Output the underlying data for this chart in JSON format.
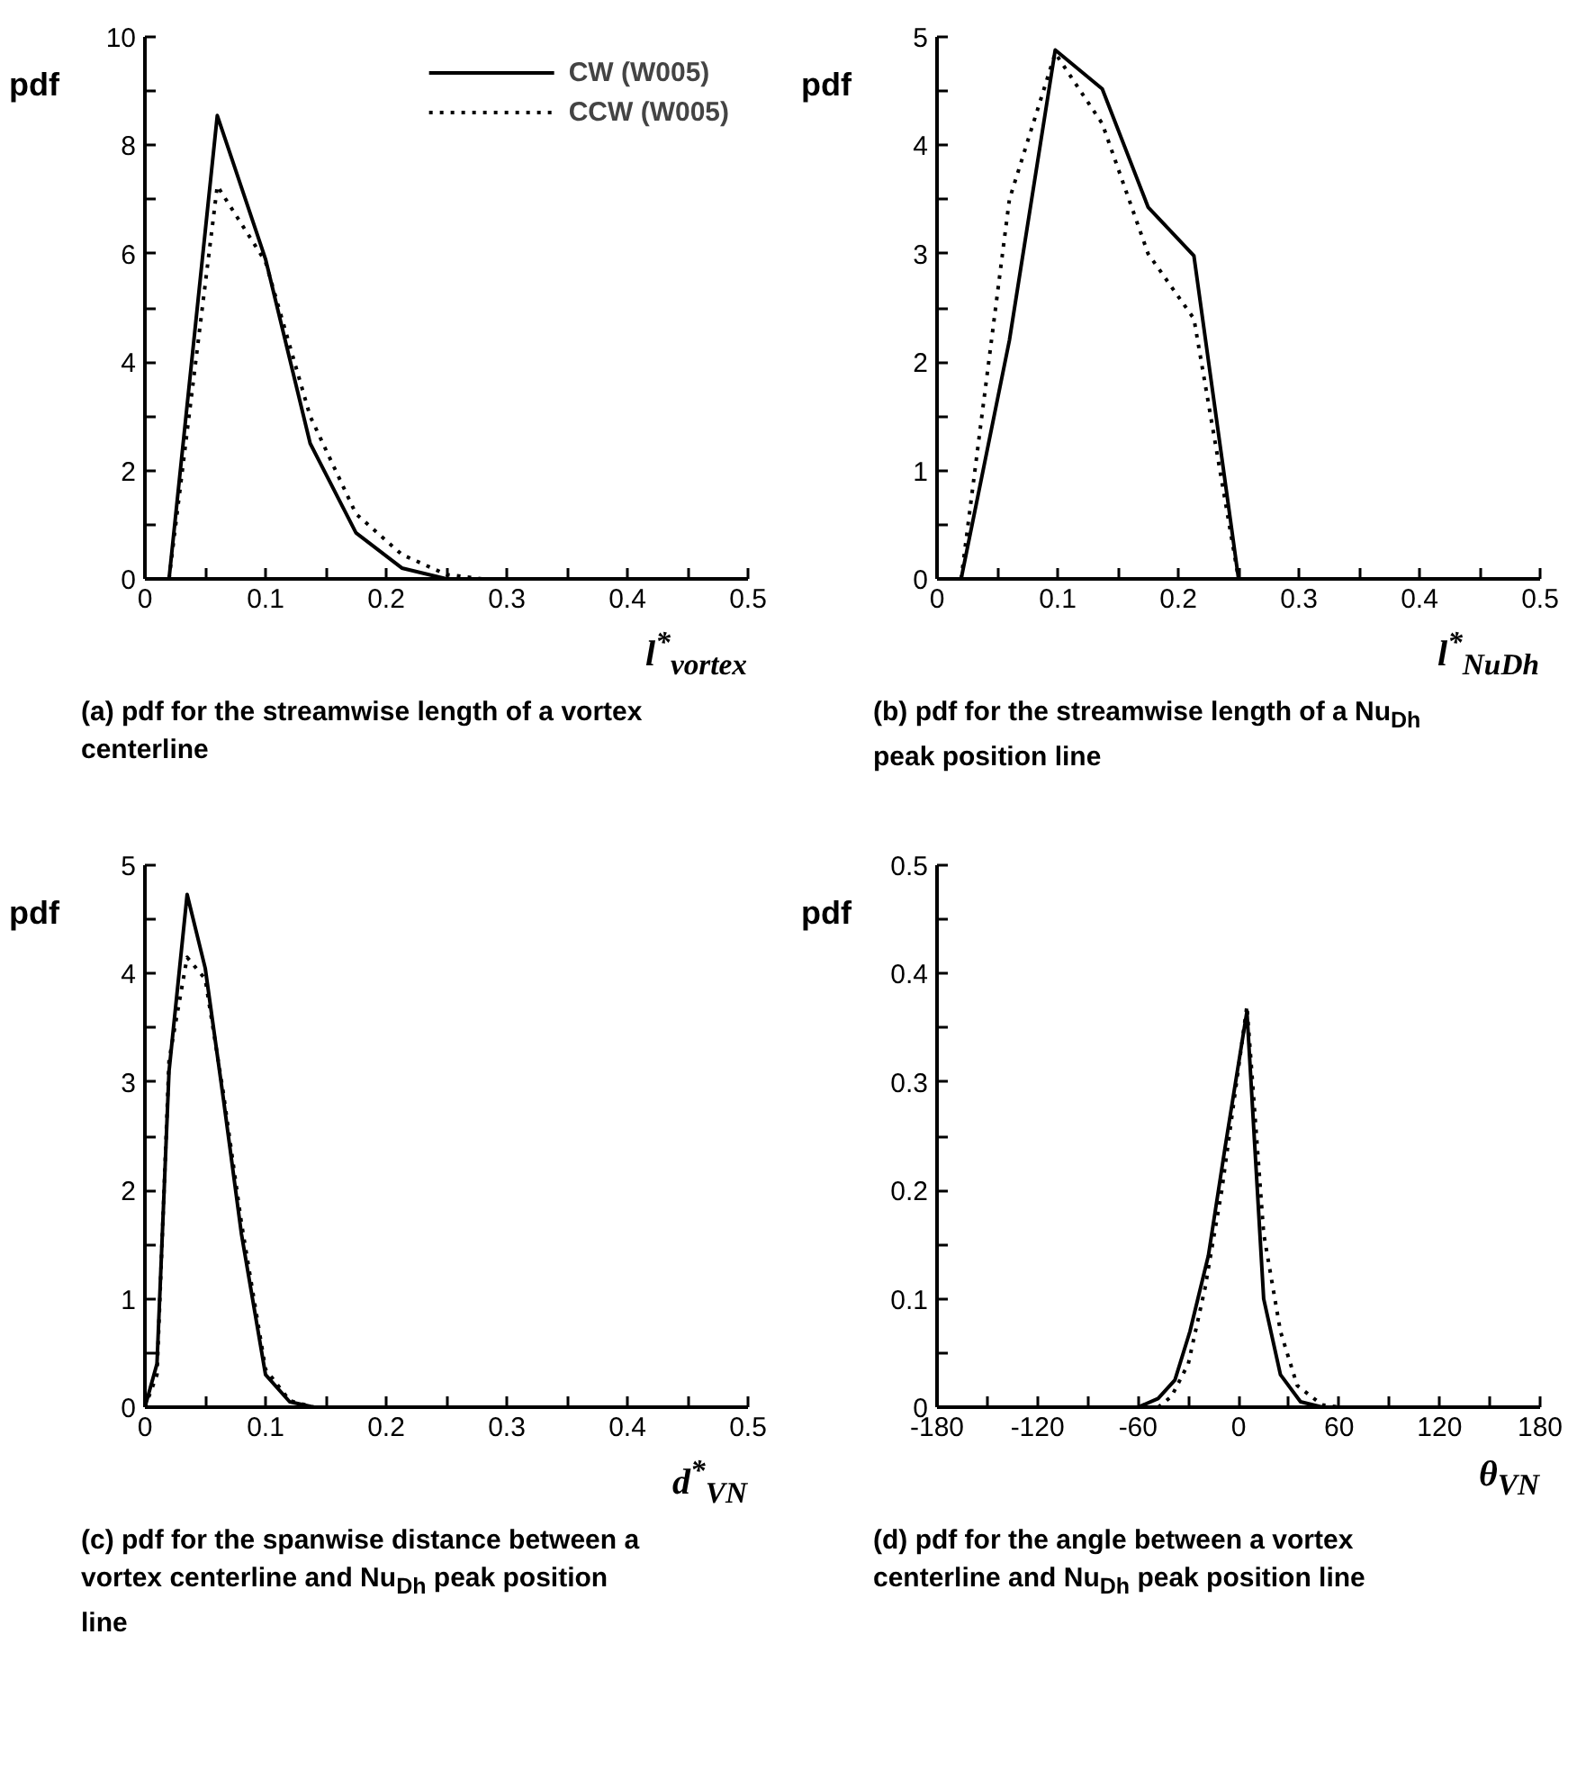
{
  "chart_data": [
    {
      "type": "line",
      "xlabel": "l$^{*}$$_{vortex}$",
      "ylabel": "pdf",
      "title": "(a) pdf for the streamwise  length of a vortex centerline",
      "legend": "top right",
      "grid": false,
      "xlim": [
        0,
        0.5
      ],
      "ylim": [
        0,
        10
      ],
      "xticks": [
        0,
        {
          "value": 0.05,
          "label": null
        },
        0.1,
        {
          "value": 0.15,
          "label": null
        },
        0.2,
        {
          "value": 0.25,
          "label": null
        },
        0.3,
        {
          "value": 0.35,
          "label": null
        },
        0.4,
        {
          "value": 0.45,
          "label": null
        },
        0.5
      ],
      "yticks": [
        0,
        {
          "value": 1,
          "label": null
        },
        2,
        {
          "value": 3,
          "label": null
        },
        4,
        {
          "value": 5,
          "label": null
        },
        6,
        {
          "value": 7,
          "label": null
        },
        8,
        {
          "value": 9,
          "label": null
        },
        10
      ],
      "series": [
        {
          "name": "CW (W005)",
          "color": "#000000",
          "line_style": "solid",
          "x": [
            0.02,
            0.06,
            0.1,
            0.137,
            0.175,
            0.213,
            0.25,
            0.5
          ],
          "values": [
            0,
            8.55,
            5.9,
            2.5,
            0.85,
            0.2,
            0,
            0
          ]
        },
        {
          "name": "CCW (W005)",
          "color": "#000000",
          "line_style": "dotted",
          "x": [
            0.02,
            0.06,
            0.1,
            0.137,
            0.175,
            0.213,
            0.25,
            0.28,
            0.5
          ],
          "values": [
            0,
            7.25,
            5.85,
            3.0,
            1.2,
            0.45,
            0.08,
            0,
            0
          ]
        }
      ]
    },
    {
      "type": "line",
      "xlabel": "l$^{*}$$_{NuDh}$",
      "ylabel": "pdf",
      "title": "(b) pdf for the streamwise length of a Nu$_{Dh}$ peak position line",
      "grid": false,
      "xlim": [
        0,
        0.5
      ],
      "ylim": [
        0,
        5
      ],
      "xticks": [
        0,
        {
          "value": 0.05,
          "label": null
        },
        0.1,
        {
          "value": 0.15,
          "label": null
        },
        0.2,
        {
          "value": 0.25,
          "label": null
        },
        0.3,
        {
          "value": 0.35,
          "label": null
        },
        0.4,
        {
          "value": 0.45,
          "label": null
        },
        0.5
      ],
      "yticks": [
        0,
        {
          "value": 0.5,
          "label": null
        },
        1,
        {
          "value": 1.5,
          "label": null
        },
        2,
        {
          "value": 2.5,
          "label": null
        },
        3,
        {
          "value": 3.5,
          "label": null
        },
        4,
        {
          "value": 4.5,
          "label": null
        },
        5
      ],
      "series": [
        {
          "color": "#000000",
          "line_style": "solid",
          "x": [
            0.02,
            0.06,
            0.098,
            0.137,
            0.175,
            0.213,
            0.25,
            0.5
          ],
          "values": [
            0,
            2.2,
            4.88,
            4.52,
            3.43,
            2.98,
            0,
            0
          ]
        },
        {
          "color": "#000000",
          "line_style": "dotted",
          "x": [
            0.02,
            0.06,
            0.098,
            0.137,
            0.175,
            0.213,
            0.25
          ],
          "values": [
            0,
            3.5,
            4.85,
            4.2,
            3.0,
            2.4,
            0
          ]
        }
      ]
    },
    {
      "type": "line",
      "xlabel": "d$^{*}$$_{VN}$",
      "ylabel": "pdf",
      "title": "(c) pdf for the spanwise distance between a vortex centerline and  Nu$_{Dh}$ peak position line",
      "grid": false,
      "xlim": [
        0,
        0.5
      ],
      "ylim": [
        0,
        5
      ],
      "xticks": [
        0,
        {
          "value": 0.05,
          "label": null
        },
        0.1,
        {
          "value": 0.15,
          "label": null
        },
        0.2,
        {
          "value": 0.25,
          "label": null
        },
        0.3,
        {
          "value": 0.35,
          "label": null
        },
        0.4,
        {
          "value": 0.45,
          "label": null
        },
        0.5
      ],
      "yticks": [
        0,
        {
          "value": 0.5,
          "label": null
        },
        1,
        {
          "value": 1.5,
          "label": null
        },
        2,
        {
          "value": 2.5,
          "label": null
        },
        3,
        {
          "value": 3.5,
          "label": null
        },
        4,
        {
          "value": 4.5,
          "label": null
        },
        5
      ],
      "series": [
        {
          "color": "#000000",
          "line_style": "solid",
          "x": [
            0,
            0.01,
            0.02,
            0.035,
            0.05,
            0.065,
            0.08,
            0.1,
            0.12,
            0.14,
            0.5
          ],
          "values": [
            0,
            0.4,
            3.1,
            4.73,
            4.05,
            2.85,
            1.6,
            0.3,
            0.05,
            0,
            0
          ]
        },
        {
          "color": "#000000",
          "line_style": "dotted",
          "x": [
            0,
            0.01,
            0.02,
            0.035,
            0.05,
            0.065,
            0.08,
            0.1,
            0.12,
            0.14,
            0.25
          ],
          "values": [
            0,
            0.3,
            3.2,
            4.15,
            3.95,
            2.9,
            1.7,
            0.35,
            0.06,
            0,
            0
          ]
        }
      ]
    },
    {
      "type": "line",
      "xlabel": "θ$_{VN}$",
      "ylabel": "pdf",
      "title": "(d) pdf for the angle between a vortex centerline and Nu$_{Dh}$ peak position line",
      "grid": false,
      "xlim": [
        -180,
        180
      ],
      "ylim": [
        0,
        0.5
      ],
      "xticks": [
        -180,
        {
          "value": -150,
          "label": null
        },
        -120,
        {
          "value": -90,
          "label": null
        },
        -60,
        {
          "value": -30,
          "label": null
        },
        0,
        {
          "value": 30,
          "label": null
        },
        60,
        {
          "value": 90,
          "label": null
        },
        120,
        {
          "value": 150,
          "label": null
        },
        180
      ],
      "yticks": [
        0,
        {
          "value": 0.05,
          "label": null
        },
        0.1,
        {
          "value": 0.15,
          "label": null
        },
        0.2,
        {
          "value": 0.25,
          "label": null
        },
        0.3,
        {
          "value": 0.35,
          "label": null
        },
        0.4,
        {
          "value": 0.45,
          "label": null
        },
        0.5
      ],
      "series": [
        {
          "color": "#000000",
          "line_style": "solid",
          "x": [
            -180,
            -60,
            -48,
            -38,
            -29,
            -18,
            -8,
            5,
            15,
            25,
            37,
            50,
            180
          ],
          "values": [
            0,
            0,
            0.008,
            0.025,
            0.07,
            0.14,
            0.24,
            0.365,
            0.1,
            0.03,
            0.005,
            0,
            0
          ]
        },
        {
          "color": "#000000",
          "line_style": "dotted",
          "x": [
            -48,
            -40,
            -30,
            -20,
            -10,
            5,
            15,
            25,
            35,
            50,
            60
          ],
          "values": [
            0,
            0.01,
            0.04,
            0.11,
            0.2,
            0.37,
            0.16,
            0.07,
            0.02,
            0.002,
            0
          ]
        }
      ]
    }
  ]
}
